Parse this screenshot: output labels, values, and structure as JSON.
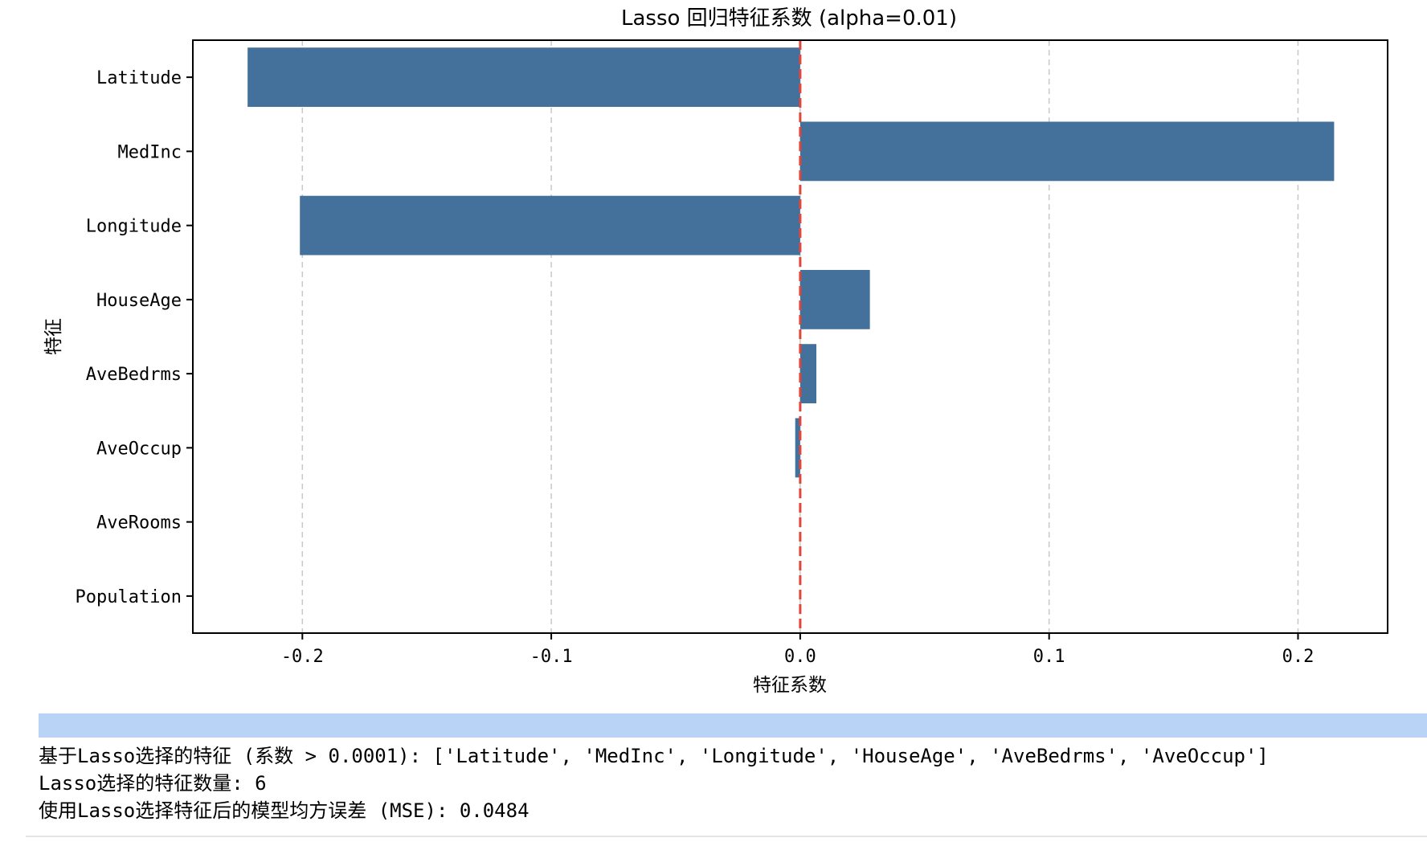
{
  "chart_data": {
    "type": "bar",
    "orientation": "horizontal",
    "title": "Lasso 回归特征系数 (alpha=0.01)",
    "xlabel": "特征系数",
    "ylabel": "特征",
    "categories": [
      "Latitude",
      "MedInc",
      "Longitude",
      "HouseAge",
      "AveBedrms",
      "AveOccup",
      "AveRooms",
      "Population"
    ],
    "values": [
      -0.222,
      0.2145,
      -0.201,
      0.028,
      0.0065,
      -0.002,
      0.0,
      0.0
    ],
    "xlim": [
      -0.244,
      0.236
    ],
    "xticks": [
      -0.2,
      -0.1,
      0.0,
      0.1,
      0.2
    ],
    "xtick_labels": [
      "-0.2",
      "-0.1",
      "0.0",
      "0.1",
      "0.2"
    ],
    "reference_line": {
      "x": 0.0,
      "style": "dashed",
      "color": "#e0463a"
    },
    "grid": "x-dashed",
    "bar_color": "#44719b"
  },
  "output": {
    "lines": [
      "基于Lasso选择的特征 (系数 > 0.0001): ['Latitude', 'MedInc', 'Longitude', 'HouseAge', 'AveBedrms', 'AveOccup']",
      "Lasso选择的特征数量: 6",
      "使用Lasso选择特征后的模型均方误差 (MSE): 0.0484"
    ]
  }
}
